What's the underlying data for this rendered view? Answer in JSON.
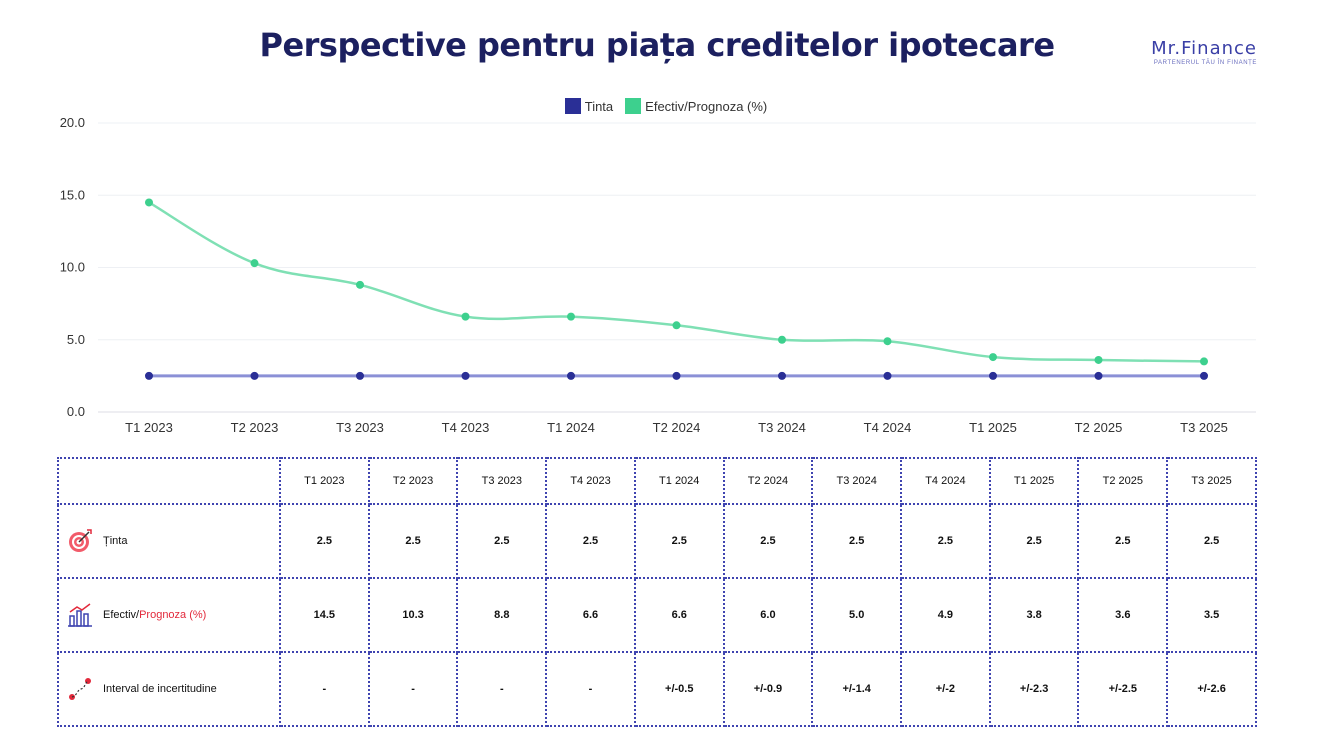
{
  "header": {
    "title": "Perspective pentru piața creditelor ipotecare",
    "brand_name": "Mr.Finance",
    "brand_tagline": "PARTENERUL TĂU ÎN FINANȚE"
  },
  "colors": {
    "tinta": "#2a2f96",
    "efectiv": "#3dd08e",
    "accent_red": "#e2293b",
    "title": "#1c2060"
  },
  "chart_data": {
    "type": "line",
    "title": "Perspective pentru piața creditelor ipotecare",
    "categories": [
      "T1 2023",
      "T2 2023",
      "T3 2023",
      "T4 2023",
      "T1 2024",
      "T2 2024",
      "T3 2024",
      "T4 2024",
      "T1 2025",
      "T2 2025",
      "T3 2025"
    ],
    "series": [
      {
        "name": "Tinta",
        "values": [
          2.5,
          2.5,
          2.5,
          2.5,
          2.5,
          2.5,
          2.5,
          2.5,
          2.5,
          2.5,
          2.5
        ]
      },
      {
        "name": "Efectiv/Prognoza (%)",
        "values": [
          14.5,
          10.3,
          8.8,
          6.6,
          6.6,
          6.0,
          5.0,
          4.9,
          3.8,
          3.6,
          3.5
        ]
      }
    ],
    "ylim": [
      0,
      20
    ],
    "yticks": [
      "0.0",
      "5.0",
      "10.0",
      "15.0",
      "20.0"
    ],
    "grid": true,
    "legend": "top-center"
  },
  "table": {
    "headers": [
      "T1 2023",
      "T2 2023",
      "T3 2023",
      "T4 2023",
      "T1 2024",
      "T2 2024",
      "T3 2024",
      "T4 2024",
      "T1 2025",
      "T2 2025",
      "T3 2025"
    ],
    "rows": [
      {
        "label": "Ținta",
        "icon": "target-icon",
        "values": [
          "2.5",
          "2.5",
          "2.5",
          "2.5",
          "2.5",
          "2.5",
          "2.5",
          "2.5",
          "2.5",
          "2.5",
          "2.5"
        ],
        "styles": [
          "",
          "",
          "",
          "",
          "",
          "",
          "",
          "",
          "",
          "",
          ""
        ]
      },
      {
        "label_part1": "Efectiv/",
        "label_part2": "Prognoza (%)",
        "icon": "bar-chart-icon",
        "values": [
          "14.5",
          "10.3",
          "8.8",
          "6.6",
          "6.6",
          "6.0",
          "5.0",
          "4.9",
          "3.8",
          "3.6",
          "3.5"
        ],
        "styles": [
          "",
          "",
          "",
          "",
          "blue",
          "red",
          "red",
          "red",
          "red",
          "red",
          "red"
        ]
      },
      {
        "label": "Interval de incertitudine",
        "icon": "path-icon",
        "values": [
          "-",
          "-",
          "-",
          "-",
          "+/-0.5",
          "+/-0.9",
          "+/-1.4",
          "+/-2",
          "+/-2.3",
          "+/-2.5",
          "+/-2.6"
        ],
        "styles": [
          "",
          "",
          "",
          "",
          "red",
          "red",
          "red",
          "red",
          "red",
          "red",
          "red"
        ]
      }
    ]
  }
}
